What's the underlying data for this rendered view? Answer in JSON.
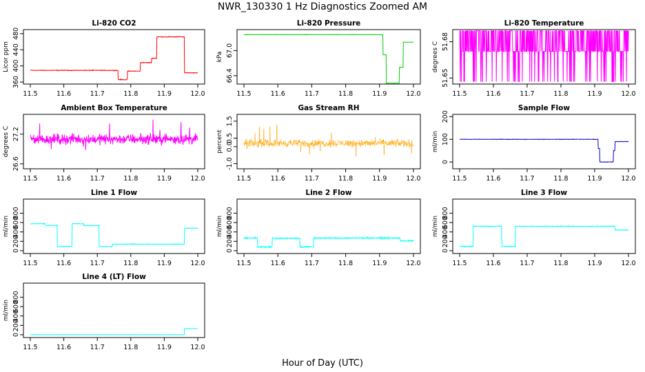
{
  "figure": {
    "title": "NWR_130330  1 Hz Diagnostics Zoomed AM",
    "xlabel": "Hour of Day (UTC)"
  },
  "chart_data": [
    {
      "id": "co2",
      "type": "line",
      "title": "Li-820 CO2",
      "ylabel": "Licor ppm",
      "color": "#ff0000",
      "xlim": [
        11.5,
        12.0
      ],
      "ylim": [
        355,
        490
      ],
      "x_ticks": [
        "11.5",
        "11.6",
        "11.7",
        "11.8",
        "11.9",
        "12.0"
      ],
      "y_ticks": [
        360,
        400,
        440,
        480
      ],
      "y_tick_labels": [
        "360",
        "400",
        "440",
        "480"
      ],
      "noise": 1.2,
      "spikes": 0,
      "segments": [
        [
          11.5,
          11.762,
          389
        ],
        [
          11.762,
          11.79,
          366
        ],
        [
          11.79,
          11.828,
          387
        ],
        [
          11.828,
          11.862,
          408
        ],
        [
          11.862,
          11.877,
          419
        ],
        [
          11.877,
          11.96,
          472
        ],
        [
          11.96,
          12.0,
          383
        ]
      ]
    },
    {
      "id": "pressure",
      "type": "line",
      "title": "Li-820 Pressure",
      "ylabel": "kPa",
      "color": "#00cc00",
      "xlim": [
        11.5,
        12.0
      ],
      "ylim": [
        66.2,
        67.5
      ],
      "x_ticks": [
        "11.5",
        "11.6",
        "11.7",
        "11.8",
        "11.9",
        "12.0"
      ],
      "y_ticks": [
        66.4,
        67.0
      ],
      "y_tick_labels": [
        "66.4",
        "67.0"
      ],
      "noise": 0.006,
      "spikes": 0,
      "segments": [
        [
          11.5,
          11.91,
          67.38
        ],
        [
          11.91,
          11.92,
          66.9
        ],
        [
          11.92,
          11.958,
          66.22
        ],
        [
          11.958,
          11.97,
          66.6
        ],
        [
          11.97,
          12.0,
          67.2
        ]
      ]
    },
    {
      "id": "temperature",
      "type": "line",
      "title": "Li-820 Temperature",
      "ylabel": "degrees C",
      "color": "#ff00ff",
      "xlim": [
        11.5,
        12.0
      ],
      "ylim": [
        51.645,
        51.69
      ],
      "x_ticks": [
        "11.5",
        "11.6",
        "11.7",
        "11.8",
        "11.9",
        "12.0"
      ],
      "y_ticks": [
        51.65,
        51.68
      ],
      "y_tick_labels": [
        "51.65",
        "51.68"
      ],
      "noise": 0,
      "spikes": 0,
      "toggle": [
        51.672,
        51.689,
        51.647
      ],
      "segments": [
        [
          11.5,
          12.0,
          51.672
        ]
      ]
    },
    {
      "id": "ambient",
      "type": "line",
      "title": "Ambient Box Temperature",
      "ylabel": "degrees C",
      "color": "#ff00ff",
      "xlim": [
        11.5,
        12.0
      ],
      "ylim": [
        26.5,
        27.6
      ],
      "x_ticks": [
        "11.5",
        "11.6",
        "11.7",
        "11.8",
        "11.9",
        "12.0"
      ],
      "y_ticks": [
        26.6,
        27.2
      ],
      "y_tick_labels": [
        "26.6",
        "27.2"
      ],
      "noise": 0.15,
      "spikes": 0.3,
      "segments": [
        [
          11.5,
          12.0,
          27.1
        ]
      ]
    },
    {
      "id": "rh",
      "type": "line",
      "title": "Gas Stream RH",
      "ylabel": "percent",
      "color": "#ffa500",
      "xlim": [
        11.5,
        12.0
      ],
      "ylim": [
        -1.3,
        1.9
      ],
      "x_ticks": [
        "11.5",
        "11.6",
        "11.7",
        "11.8",
        "11.9",
        "12.0"
      ],
      "y_ticks": [
        -1.0,
        0.0,
        0.5,
        1.5
      ],
      "y_tick_labels": [
        "-1.0",
        "0.0",
        "0.5",
        "1.5"
      ],
      "noise": 0.32,
      "spikes": 0.8,
      "dashed": true,
      "segments": [
        [
          11.5,
          12.0,
          0.2
        ]
      ]
    },
    {
      "id": "sample",
      "type": "line",
      "title": "Sample Flow",
      "ylabel": "ml/min",
      "color": "#0000cc",
      "xlim": [
        11.5,
        12.0
      ],
      "ylim": [
        -30,
        210
      ],
      "x_ticks": [
        "11.5",
        "11.6",
        "11.7",
        "11.8",
        "11.9",
        "12.0"
      ],
      "y_ticks": [
        0,
        100,
        200
      ],
      "y_tick_labels": [
        "0",
        "100",
        "200"
      ],
      "noise": 1.5,
      "spikes": 0,
      "segments": [
        [
          11.5,
          11.91,
          100
        ],
        [
          11.91,
          11.915,
          60
        ],
        [
          11.915,
          11.955,
          0
        ],
        [
          11.955,
          11.96,
          50
        ],
        [
          11.96,
          12.0,
          90
        ]
      ]
    },
    {
      "id": "line1",
      "type": "line",
      "title": "Line 1 Flow",
      "ylabel": "ml/min",
      "color": "#00ffff",
      "xlim": [
        11.5,
        12.0
      ],
      "ylim": [
        -60,
        1100
      ],
      "x_ticks": [
        "11.5",
        "11.6",
        "11.7",
        "11.8",
        "11.9",
        "12.0"
      ],
      "y_ticks": [
        0,
        200,
        400,
        600,
        800
      ],
      "y_tick_labels": [
        "0",
        "200",
        "400",
        "600",
        "800"
      ],
      "noise": 10,
      "spikes": 0,
      "segments": [
        [
          11.5,
          11.545,
          575
        ],
        [
          11.545,
          11.58,
          540
        ],
        [
          11.58,
          11.625,
          90
        ],
        [
          11.625,
          11.66,
          575
        ],
        [
          11.66,
          11.705,
          535
        ],
        [
          11.705,
          11.745,
          90
        ],
        [
          11.745,
          11.96,
          140
        ],
        [
          11.96,
          12.0,
          480
        ]
      ]
    },
    {
      "id": "line2",
      "type": "line",
      "title": "Line 2 Flow",
      "ylabel": "ml/min",
      "color": "#00ffff",
      "xlim": [
        11.5,
        12.0
      ],
      "ylim": [
        -60,
        1100
      ],
      "x_ticks": [
        "11.5",
        "11.6",
        "11.7",
        "11.8",
        "11.9",
        "12.0"
      ],
      "y_ticks": [
        0,
        200,
        400,
        600,
        800
      ],
      "y_tick_labels": [
        "0",
        "200",
        "400",
        "600",
        "800"
      ],
      "noise": 22,
      "spikes": 0,
      "segments": [
        [
          11.5,
          11.54,
          270
        ],
        [
          11.54,
          11.583,
          80
        ],
        [
          11.583,
          11.665,
          265
        ],
        [
          11.665,
          11.705,
          80
        ],
        [
          11.705,
          11.96,
          270
        ],
        [
          11.96,
          12.0,
          210
        ]
      ]
    },
    {
      "id": "line3",
      "type": "line",
      "title": "Line 3 Flow",
      "ylabel": "ml/min",
      "color": "#00ffff",
      "xlim": [
        11.5,
        12.0
      ],
      "ylim": [
        -60,
        1100
      ],
      "x_ticks": [
        "11.5",
        "11.6",
        "11.7",
        "11.8",
        "11.9",
        "12.0"
      ],
      "y_ticks": [
        0,
        200,
        400,
        600,
        800
      ],
      "y_tick_labels": [
        "0",
        "200",
        "400",
        "600",
        "800"
      ],
      "noise": 12,
      "spikes": 0,
      "segments": [
        [
          11.5,
          11.54,
          90
        ],
        [
          11.54,
          11.625,
          520
        ],
        [
          11.625,
          11.665,
          90
        ],
        [
          11.665,
          11.96,
          520
        ],
        [
          11.96,
          12.0,
          440
        ]
      ]
    },
    {
      "id": "line4",
      "type": "line",
      "title": "Line 4 (LT) Flow",
      "ylabel": "ml/min",
      "color": "#00ffff",
      "xlim": [
        11.5,
        12.0
      ],
      "ylim": [
        -60,
        1100
      ],
      "x_ticks": [
        "11.5",
        "11.6",
        "11.7",
        "11.8",
        "11.9",
        "12.0"
      ],
      "y_ticks": [
        0,
        200,
        400,
        600,
        800
      ],
      "y_tick_labels": [
        "0",
        "200",
        "400",
        "600",
        "800"
      ],
      "noise": 2,
      "spikes": 0,
      "segments": [
        [
          11.5,
          11.96,
          0
        ],
        [
          11.96,
          12.0,
          130
        ]
      ]
    }
  ]
}
